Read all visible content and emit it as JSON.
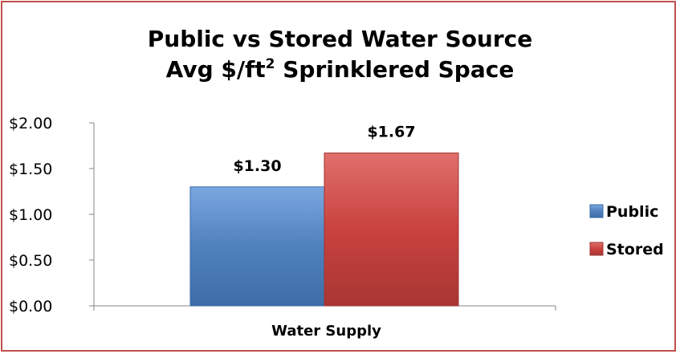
{
  "chart_data": {
    "type": "bar",
    "title_line1": "Public vs Stored Water Source",
    "title_line2_pre": "Avg $/ft",
    "title_line2_sup": "2",
    "title_line2_post": " Sprinklered Space",
    "categories": [
      "Water Supply"
    ],
    "series": [
      {
        "name": "Public",
        "values": [
          1.3
        ],
        "label": "$1.30",
        "color": "#4f81bd"
      },
      {
        "name": "Stored",
        "values": [
          1.67
        ],
        "label": "$1.67",
        "color": "#c0504d"
      }
    ],
    "ylim": [
      0,
      2
    ],
    "yticks": [
      {
        "value": 0,
        "label": "$0.00"
      },
      {
        "value": 0.5,
        "label": "$0.50"
      },
      {
        "value": 1,
        "label": "$1.00"
      },
      {
        "value": 1.5,
        "label": "$1.50"
      },
      {
        "value": 2,
        "label": "$2.00"
      }
    ],
    "xlabel": "Water Supply",
    "legend_position": "right",
    "grid": false
  },
  "colors": {
    "border": "#c0504d",
    "public": "#4f81bd",
    "stored": "#c0504d"
  }
}
